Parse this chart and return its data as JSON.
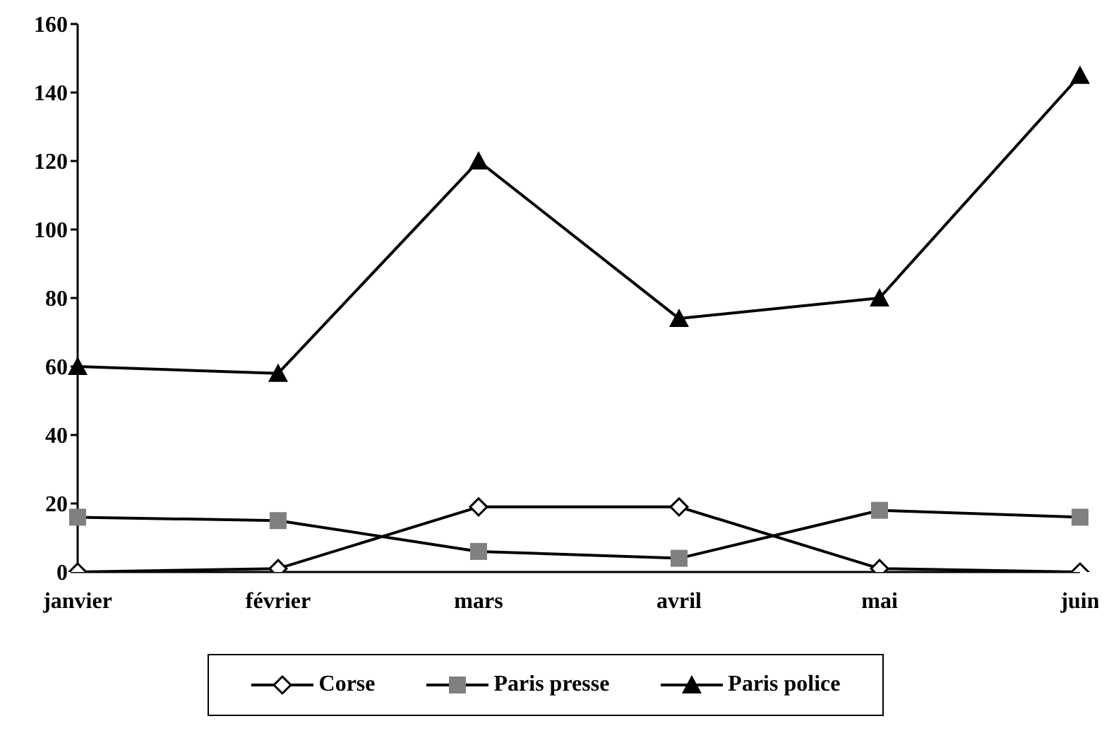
{
  "chart_data": {
    "type": "line",
    "categories": [
      "janvier",
      "février",
      "mars",
      "avril",
      "mai",
      "juin"
    ],
    "series": [
      {
        "name": "Corse",
        "color": "#000000",
        "marker": "diamond",
        "values": [
          0,
          1,
          19,
          19,
          1,
          0
        ]
      },
      {
        "name": "Paris presse",
        "color": "#808080",
        "marker": "square",
        "values": [
          16,
          15,
          6,
          4,
          18,
          16
        ]
      },
      {
        "name": "Paris police",
        "color": "#000000",
        "marker": "triangle",
        "values": [
          60,
          58,
          120,
          74,
          80,
          145
        ]
      }
    ],
    "ylim": [
      0,
      160
    ],
    "yticks": [
      0,
      20,
      40,
      60,
      80,
      100,
      120,
      140,
      160
    ],
    "grid": false,
    "legend": "bottom",
    "line_style": "solid"
  }
}
